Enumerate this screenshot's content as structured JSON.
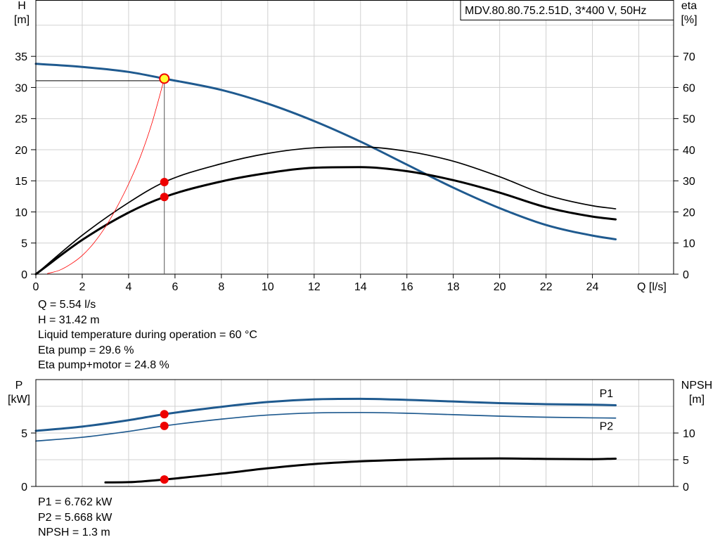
{
  "colors": {
    "pump_blue": "#1f5a8f",
    "black": "#000000",
    "system_red": "#ff0000",
    "point_red": "#ee0000",
    "duty_yellow": "#ffff33",
    "grid": "#d0d0d0"
  },
  "chart_data": [
    {
      "type": "line",
      "title": "MDV.80.80.75.2.51D, 3*400 V, 50Hz",
      "xlabel": "Q [l/s]",
      "ylabel": [
        "H",
        "[m]"
      ],
      "y2label": [
        "eta",
        "[%]"
      ],
      "xlim": [
        0,
        27.5
      ],
      "ylim": [
        0,
        44
      ],
      "y2lim": [
        0,
        88
      ],
      "grid": true,
      "x_ticks": [
        0,
        2,
        4,
        6,
        8,
        10,
        12,
        14,
        16,
        18,
        20,
        22,
        24
      ],
      "y_ticks": [
        0,
        5,
        10,
        15,
        20,
        25,
        30,
        35
      ],
      "y2_ticks": [
        0,
        10,
        20,
        30,
        40,
        50,
        60,
        70
      ],
      "series": [
        {
          "key": "head",
          "axis": "left",
          "color": "#1f5a8f",
          "width": 3,
          "x": [
            0,
            2,
            4,
            5.54,
            8,
            10,
            12,
            14,
            16,
            18,
            20,
            22,
            24,
            25
          ],
          "y": [
            33.8,
            33.3,
            32.5,
            31.42,
            29.6,
            27.4,
            24.6,
            21.3,
            17.6,
            13.9,
            10.6,
            7.9,
            6.2,
            5.6
          ]
        },
        {
          "key": "eta_pump",
          "axis": "right",
          "color": "#000000",
          "width": 1.7,
          "x": [
            0,
            2,
            4,
            5.54,
            8,
            10,
            12,
            14,
            16,
            18,
            20,
            22,
            24,
            25
          ],
          "y": [
            0,
            12.5,
            23,
            29.6,
            35.5,
            38.8,
            40.6,
            40.9,
            39.5,
            36.3,
            31.3,
            25.5,
            22.0,
            21.0
          ]
        },
        {
          "key": "eta_pump_motor",
          "axis": "right",
          "color": "#000000",
          "width": 3,
          "x": [
            0,
            2,
            4,
            5.54,
            8,
            10,
            12,
            14,
            16,
            18,
            20,
            22,
            24,
            25
          ],
          "y": [
            0,
            11.0,
            19.8,
            24.8,
            29.8,
            32.5,
            34.2,
            34.4,
            33.1,
            30.2,
            26.2,
            21.5,
            18.5,
            17.6
          ]
        },
        {
          "key": "system_curve",
          "axis": "left",
          "color": "#ff0000",
          "width": 0.8,
          "x": [
            0.5,
            1,
            1.5,
            2,
            2.5,
            3,
            3.5,
            4,
            4.5,
            5,
            5.54
          ],
          "y": [
            0.1,
            0.6,
            1.6,
            3.0,
            5.0,
            7.6,
            10.8,
            14.5,
            18.8,
            24.2,
            31.42
          ]
        }
      ],
      "points": [
        {
          "key": "duty_head",
          "x": 5.54,
          "y": 31.42,
          "axis": "left",
          "style": "duty"
        },
        {
          "key": "duty_eta_pump",
          "x": 5.54,
          "y": 29.6,
          "axis": "right",
          "style": "red"
        },
        {
          "key": "duty_eta_pump_motor",
          "x": 5.54,
          "y": 24.8,
          "axis": "right",
          "style": "red"
        }
      ]
    },
    {
      "type": "line",
      "ylabel": [
        "P",
        "[kW]"
      ],
      "y2label": [
        "NPSH",
        "[m]"
      ],
      "xlim": [
        0,
        27.5
      ],
      "ylim": [
        0,
        10
      ],
      "y2lim": [
        0,
        20
      ],
      "grid": true,
      "y_ticks": [
        0,
        5
      ],
      "y2_ticks": [
        0,
        5,
        10
      ],
      "series": [
        {
          "key": "P1",
          "name": "P1",
          "axis": "left",
          "color": "#1f5a8f",
          "width": 3,
          "x": [
            0,
            2,
            4,
            5.54,
            8,
            10,
            12,
            14,
            16,
            18,
            20,
            22,
            24,
            25
          ],
          "y": [
            5.2,
            5.6,
            6.2,
            6.762,
            7.45,
            7.9,
            8.15,
            8.2,
            8.1,
            7.95,
            7.8,
            7.7,
            7.65,
            7.6
          ]
        },
        {
          "key": "P2",
          "name": "P2",
          "axis": "left",
          "color": "#1f5a8f",
          "width": 1.7,
          "x": [
            0,
            2,
            4,
            5.54,
            8,
            10,
            12,
            14,
            16,
            18,
            20,
            22,
            24,
            25
          ],
          "y": [
            4.25,
            4.6,
            5.15,
            5.668,
            6.3,
            6.68,
            6.88,
            6.92,
            6.85,
            6.72,
            6.58,
            6.48,
            6.42,
            6.4
          ]
        },
        {
          "key": "NPSH",
          "axis": "right",
          "color": "#000000",
          "width": 3,
          "x": [
            3,
            4,
            5.54,
            8,
            10,
            12,
            14,
            16,
            18,
            20,
            22,
            24,
            25
          ],
          "y": [
            0.75,
            0.8,
            1.3,
            2.4,
            3.4,
            4.2,
            4.7,
            5.0,
            5.2,
            5.25,
            5.15,
            5.1,
            5.2
          ]
        }
      ],
      "series_labels": [
        {
          "series": "P1",
          "x": 24.6,
          "y": 8.35
        },
        {
          "series": "P2",
          "x": 24.6,
          "y": 5.3
        }
      ],
      "points": [
        {
          "key": "duty_P1",
          "x": 5.54,
          "y": 6.762,
          "axis": "left",
          "style": "red"
        },
        {
          "key": "duty_P2",
          "x": 5.54,
          "y": 5.668,
          "axis": "left",
          "style": "red"
        },
        {
          "key": "duty_NPSH",
          "x": 5.54,
          "y": 1.3,
          "axis": "right",
          "style": "red"
        }
      ]
    }
  ],
  "info_top": [
    "Q = 5.54 l/s",
    "H = 31.42 m",
    "Liquid temperature during operation = 60 °C",
    "Eta pump = 29.6 %",
    "Eta pump+motor = 24.8 %"
  ],
  "info_bottom": [
    "P1 = 6.762 kW",
    "P2 = 5.668 kW",
    "NPSH = 1.3 m"
  ]
}
